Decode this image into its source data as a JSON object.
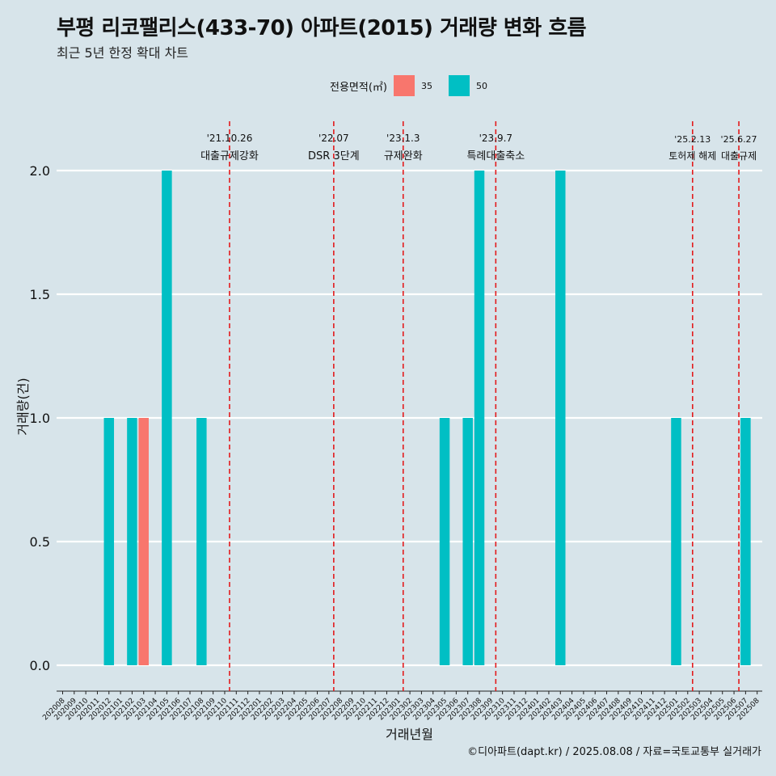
{
  "title": "부평 리코팰리스(433-70) 아파트(2015) 거래량 변화 흐름",
  "subtitle": "최근 5년 한정 확대 차트",
  "caption": "©디아파트(dapt.kr) / 2025.08.08 / 자료=국토교통부 실거래가",
  "legend": {
    "title": "전용면적(㎡)",
    "items": [
      {
        "label": "35",
        "color": "#F8766D"
      },
      {
        "label": "50",
        "color": "#00BFC4"
      }
    ]
  },
  "chart_data": {
    "type": "bar",
    "xlabel": "거래년월",
    "ylabel": "거래량(건)",
    "ylim": [
      0,
      2
    ],
    "yticks": [
      "0.0",
      "0.5",
      "1.0",
      "1.5",
      "2.0"
    ],
    "grid": "horizontal",
    "legend_position": "top",
    "categories": [
      "202008",
      "202009",
      "202010",
      "202011",
      "202012",
      "202101",
      "202102",
      "202103",
      "202104",
      "202105",
      "202106",
      "202107",
      "202108",
      "202109",
      "202110",
      "202111",
      "202112",
      "202201",
      "202202",
      "202203",
      "202204",
      "202205",
      "202206",
      "202207",
      "202208",
      "202209",
      "202210",
      "202211",
      "202212",
      "202301",
      "202302",
      "202303",
      "202304",
      "202305",
      "202306",
      "202307",
      "202308",
      "202309",
      "202310",
      "202311",
      "202312",
      "202401",
      "202402",
      "202403",
      "202404",
      "202405",
      "202406",
      "202407",
      "202408",
      "202409",
      "202410",
      "202411",
      "202412",
      "202501",
      "202502",
      "202503",
      "202504",
      "202505",
      "202506",
      "202507",
      "202508"
    ],
    "series": [
      {
        "name": "35",
        "color": "#F8766D",
        "values": [
          0,
          0,
          0,
          0,
          0,
          0,
          0,
          1,
          0,
          0,
          0,
          0,
          0,
          0,
          0,
          0,
          0,
          0,
          0,
          0,
          0,
          0,
          0,
          0,
          0,
          0,
          0,
          0,
          0,
          0,
          0,
          0,
          0,
          0,
          0,
          0,
          0,
          0,
          0,
          0,
          0,
          0,
          0,
          0,
          0,
          0,
          0,
          0,
          0,
          0,
          0,
          0,
          0,
          0,
          0,
          0,
          0,
          0,
          0,
          0,
          0
        ]
      },
      {
        "name": "50",
        "color": "#00BFC4",
        "values": [
          0,
          0,
          0,
          0,
          1,
          0,
          1,
          0,
          0,
          2,
          0,
          0,
          1,
          0,
          0,
          0,
          0,
          0,
          0,
          0,
          0,
          0,
          0,
          0,
          0,
          0,
          0,
          0,
          0,
          0,
          0,
          0,
          0,
          1,
          0,
          1,
          2,
          0,
          0,
          0,
          0,
          0,
          0,
          2,
          0,
          0,
          0,
          0,
          0,
          0,
          0,
          0,
          0,
          1,
          0,
          0,
          0,
          0,
          0,
          1,
          0
        ]
      }
    ],
    "events": [
      {
        "date": "'21.10.26",
        "label": "대출규제강화",
        "x": "202110"
      },
      {
        "date": "'22.07",
        "label": "DSR 3단계",
        "x": "202207"
      },
      {
        "date": "'23.1.3",
        "label": "규제완화",
        "x": "202301"
      },
      {
        "date": "'23.9.7",
        "label": "특례대출축소",
        "x": "202309"
      },
      {
        "date": "'25.2.13",
        "label": "토허제 해제",
        "x": "202502"
      },
      {
        "date": "'25.6.27",
        "label": "대출규제",
        "x": "202506"
      }
    ]
  }
}
